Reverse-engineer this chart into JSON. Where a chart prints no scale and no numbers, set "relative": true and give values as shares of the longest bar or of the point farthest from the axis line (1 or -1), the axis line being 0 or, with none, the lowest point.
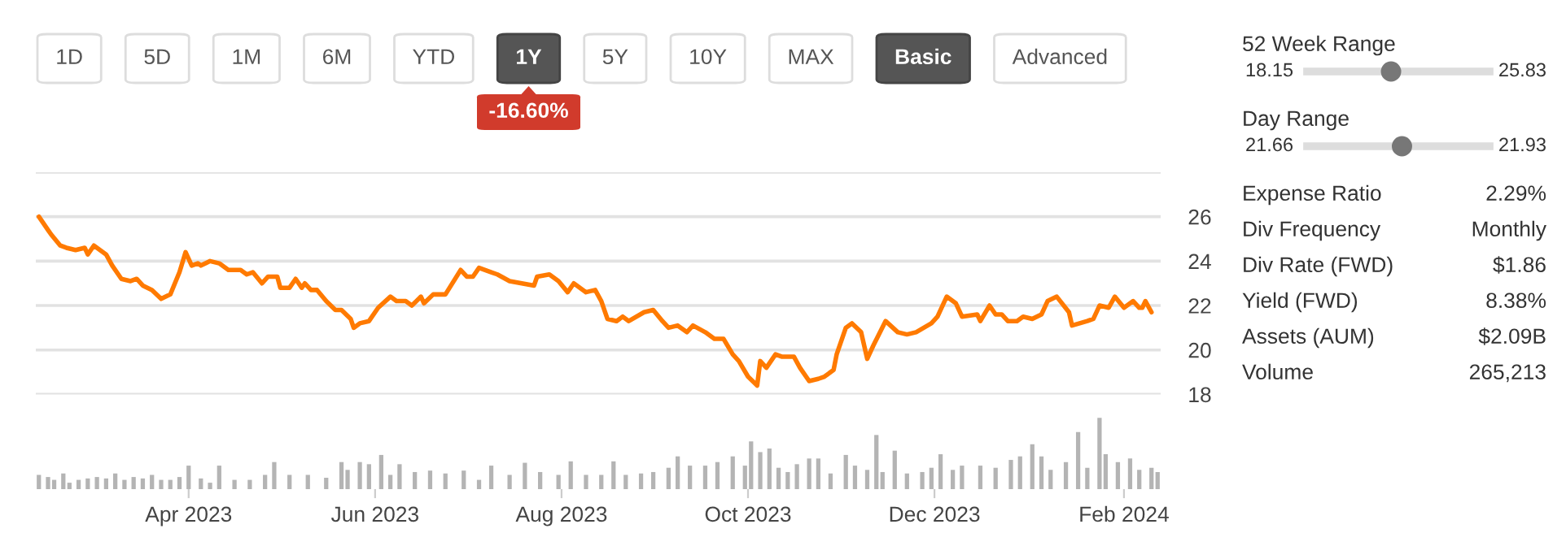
{
  "chart_data": [
    {
      "type": "line",
      "color": "#ff7a00",
      "x": [
        "2023-02-11",
        "2023-02-14",
        "2023-02-15",
        "2023-02-18",
        "2023-02-20",
        "2023-02-23",
        "2023-02-26",
        "2023-02-27",
        "2023-03-01",
        "2023-03-05",
        "2023-03-07",
        "2023-03-10",
        "2023-03-13",
        "2023-03-15",
        "2023-03-17",
        "2023-03-20",
        "2023-03-23",
        "2023-03-26",
        "2023-03-29",
        "2023-03-31",
        "2023-04-02",
        "2023-04-04",
        "2023-04-05",
        "2023-04-08",
        "2023-04-11",
        "2023-04-14",
        "2023-04-18",
        "2023-04-20",
        "2023-04-22",
        "2023-04-25",
        "2023-04-27",
        "2023-04-30",
        "2023-05-01",
        "2023-05-04",
        "2023-05-06",
        "2023-05-08",
        "2023-05-09",
        "2023-05-11",
        "2023-05-13",
        "2023-05-16",
        "2023-05-19",
        "2023-05-21",
        "2023-05-24",
        "2023-05-25",
        "2023-05-27",
        "2023-05-30",
        "2023-06-02",
        "2023-06-06",
        "2023-06-08",
        "2023-06-11",
        "2023-06-13",
        "2023-06-16",
        "2023-06-17",
        "2023-06-20",
        "2023-06-24",
        "2023-06-29",
        "2023-07-01",
        "2023-07-03",
        "2023-07-05",
        "2023-07-09",
        "2023-07-11",
        "2023-07-15",
        "2023-07-19",
        "2023-07-23",
        "2023-07-24",
        "2023-07-28",
        "2023-07-31",
        "2023-08-03",
        "2023-08-05",
        "2023-08-09",
        "2023-08-12",
        "2023-08-14",
        "2023-08-16",
        "2023-08-19",
        "2023-08-21",
        "2023-08-23",
        "2023-08-28",
        "2023-08-31",
        "2023-09-03",
        "2023-09-05",
        "2023-09-08",
        "2023-09-11",
        "2023-09-13",
        "2023-09-17",
        "2023-09-20",
        "2023-09-23",
        "2023-09-26",
        "2023-09-28",
        "2023-10-01",
        "2023-10-04",
        "2023-10-05",
        "2023-10-07",
        "2023-10-10",
        "2023-10-12",
        "2023-10-16",
        "2023-10-18",
        "2023-10-21",
        "2023-10-24",
        "2023-10-26",
        "2023-10-29",
        "2023-10-30",
        "2023-11-02",
        "2023-11-04",
        "2023-11-07",
        "2023-11-09",
        "2023-11-11",
        "2023-11-15",
        "2023-11-19",
        "2023-11-22",
        "2023-11-25",
        "2023-11-30",
        "2023-12-02",
        "2023-12-05",
        "2023-12-08",
        "2023-12-10",
        "2023-12-15",
        "2023-12-16",
        "2023-12-19",
        "2023-12-21",
        "2023-12-23",
        "2023-12-25",
        "2023-12-28",
        "2023-12-30",
        "2024-01-02",
        "2024-01-05",
        "2024-01-07",
        "2024-01-10",
        "2024-01-14",
        "2024-01-15",
        "2024-01-20",
        "2024-01-22",
        "2024-01-24",
        "2024-01-27",
        "2024-01-29",
        "2024-02-01",
        "2024-02-04",
        "2024-02-06",
        "2024-02-07",
        "2024-02-08",
        "2024-02-10"
      ],
      "values": [
        26.0,
        25.4,
        25.2,
        24.7,
        24.6,
        24.5,
        24.6,
        24.3,
        24.7,
        24.3,
        23.8,
        23.2,
        23.1,
        23.2,
        22.9,
        22.7,
        22.3,
        22.5,
        23.5,
        24.4,
        23.8,
        23.9,
        23.8,
        24.0,
        23.9,
        23.6,
        23.6,
        23.4,
        23.5,
        23.0,
        23.3,
        23.3,
        22.8,
        22.8,
        23.2,
        22.8,
        23.0,
        22.7,
        22.7,
        22.2,
        21.8,
        21.8,
        21.4,
        21.0,
        21.2,
        21.3,
        21.9,
        22.4,
        22.2,
        22.2,
        22.0,
        22.4,
        22.1,
        22.5,
        22.5,
        23.6,
        23.3,
        23.3,
        23.7,
        23.5,
        23.4,
        23.1,
        23.0,
        22.9,
        23.3,
        23.4,
        23.1,
        22.6,
        23.0,
        22.6,
        22.7,
        22.2,
        21.4,
        21.3,
        21.5,
        21.3,
        21.7,
        21.8,
        21.3,
        21.0,
        21.1,
        20.8,
        21.1,
        20.8,
        20.5,
        20.5,
        19.8,
        19.5,
        18.8,
        18.4,
        19.5,
        19.2,
        19.8,
        19.7,
        19.7,
        19.2,
        18.6,
        18.7,
        18.8,
        19.1,
        19.8,
        21.0,
        21.2,
        20.8,
        19.6,
        20.2,
        21.3,
        20.8,
        20.7,
        20.8,
        21.2,
        21.5,
        22.4,
        22.1,
        21.5,
        21.6,
        21.3,
        22.0,
        21.6,
        21.6,
        21.3,
        21.3,
        21.5,
        21.4,
        21.6,
        22.2,
        22.4,
        21.7,
        21.1,
        21.3,
        21.4,
        22.0,
        21.9,
        22.4,
        21.9,
        22.2,
        21.9,
        21.9,
        22.2,
        21.7
      ],
      "xlim": [
        "2023-02-10",
        "2024-02-13"
      ],
      "ylim": [
        18,
        28
      ],
      "yticks": [
        18,
        20,
        22,
        24,
        26,
        {
          "value": 28,
          "label": null
        }
      ],
      "grid": "y",
      "tick_labels": "y"
    },
    {
      "type": "bar",
      "color": "#b4b4b4",
      "relative": true,
      "x": [
        "2023-02-11",
        "2023-02-14",
        "2023-02-16",
        "2023-02-19",
        "2023-02-21",
        "2023-02-24",
        "2023-02-27",
        "2023-03-02",
        "2023-03-05",
        "2023-03-08",
        "2023-03-11",
        "2023-03-14",
        "2023-03-17",
        "2023-03-20",
        "2023-03-23",
        "2023-03-26",
        "2023-03-29",
        "2023-04-01",
        "2023-04-05",
        "2023-04-08",
        "2023-04-11",
        "2023-04-16",
        "2023-04-21",
        "2023-04-26",
        "2023-04-29",
        "2023-05-04",
        "2023-05-10",
        "2023-05-16",
        "2023-05-21",
        "2023-05-23",
        "2023-05-27",
        "2023-05-30",
        "2023-06-03",
        "2023-06-06",
        "2023-06-09",
        "2023-06-14",
        "2023-06-19",
        "2023-06-24",
        "2023-06-30",
        "2023-07-05",
        "2023-07-09",
        "2023-07-15",
        "2023-07-20",
        "2023-07-25",
        "2023-07-31",
        "2023-08-04",
        "2023-08-09",
        "2023-08-14",
        "2023-08-18",
        "2023-08-22",
        "2023-08-27",
        "2023-08-31",
        "2023-09-05",
        "2023-09-08",
        "2023-09-12",
        "2023-09-17",
        "2023-09-21",
        "2023-09-26",
        "2023-09-30",
        "2023-10-02",
        "2023-10-05",
        "2023-10-08",
        "2023-10-11",
        "2023-10-14",
        "2023-10-17",
        "2023-10-21",
        "2023-10-24",
        "2023-10-28",
        "2023-11-02",
        "2023-11-05",
        "2023-11-09",
        "2023-11-12",
        "2023-11-14",
        "2023-11-18",
        "2023-11-22",
        "2023-11-27",
        "2023-11-30",
        "2023-12-03",
        "2023-12-07",
        "2023-12-10",
        "2023-12-16",
        "2023-12-21",
        "2023-12-26",
        "2023-12-29",
        "2024-01-02",
        "2024-01-05",
        "2024-01-08",
        "2024-01-13",
        "2024-01-17",
        "2024-01-20",
        "2024-01-24",
        "2024-01-26",
        "2024-01-30",
        "2024-02-03",
        "2024-02-06",
        "2024-02-10",
        "2024-02-12"
      ],
      "values": [
        0.2,
        0.17,
        0.13,
        0.22,
        0.09,
        0.13,
        0.15,
        0.17,
        0.15,
        0.22,
        0.13,
        0.17,
        0.15,
        0.2,
        0.13,
        0.13,
        0.17,
        0.33,
        0.15,
        0.09,
        0.33,
        0.13,
        0.13,
        0.2,
        0.38,
        0.2,
        0.2,
        0.16,
        0.38,
        0.27,
        0.38,
        0.35,
        0.48,
        0.2,
        0.35,
        0.24,
        0.26,
        0.22,
        0.26,
        0.13,
        0.33,
        0.2,
        0.37,
        0.24,
        0.2,
        0.39,
        0.2,
        0.2,
        0.39,
        0.2,
        0.22,
        0.24,
        0.3,
        0.46,
        0.33,
        0.33,
        0.38,
        0.46,
        0.33,
        0.67,
        0.52,
        0.57,
        0.3,
        0.24,
        0.35,
        0.43,
        0.43,
        0.22,
        0.48,
        0.33,
        0.27,
        0.76,
        0.24,
        0.54,
        0.22,
        0.24,
        0.3,
        0.49,
        0.27,
        0.33,
        0.33,
        0.3,
        0.41,
        0.46,
        0.63,
        0.46,
        0.27,
        0.38,
        0.8,
        0.3,
        1.0,
        0.49,
        0.38,
        0.43,
        0.27,
        0.3,
        0.24
      ],
      "xlim": [
        "2023-02-10",
        "2024-02-13"
      ],
      "xticks": [
        {
          "value": "2023-04-01",
          "label": "Apr 2023"
        },
        {
          "value": "2023-06-01",
          "label": "Jun 2023"
        },
        {
          "value": "2023-08-01",
          "label": "Aug 2023"
        },
        {
          "value": "2023-10-01",
          "label": "Oct 2023"
        },
        {
          "value": "2023-12-01",
          "label": "Dec 2023"
        },
        {
          "value": "2024-02-01",
          "label": "Feb 2024"
        }
      ],
      "tick_labels": "x"
    },
    {
      "type": "other",
      "annotations": [
        "1D",
        "5D",
        "1M",
        "6M",
        "YTD",
        "1Y",
        "5Y",
        "10Y",
        "MAX",
        "Basic",
        "Advanced",
        "-16.60%"
      ]
    },
    {
      "type": "other",
      "annotations": [
        "52 Week Range",
        "18.15",
        "25.83",
        "Day Range",
        "21.66",
        "21.93",
        "Expense Ratio",
        "2.29%",
        "Div Frequency",
        "Monthly",
        "Div Rate (FWD)",
        "$1.86",
        "Yield (FWD)",
        "8.38%",
        "Assets (AUM)",
        "$2.09B",
        "Volume",
        "265,213"
      ]
    }
  ]
}
